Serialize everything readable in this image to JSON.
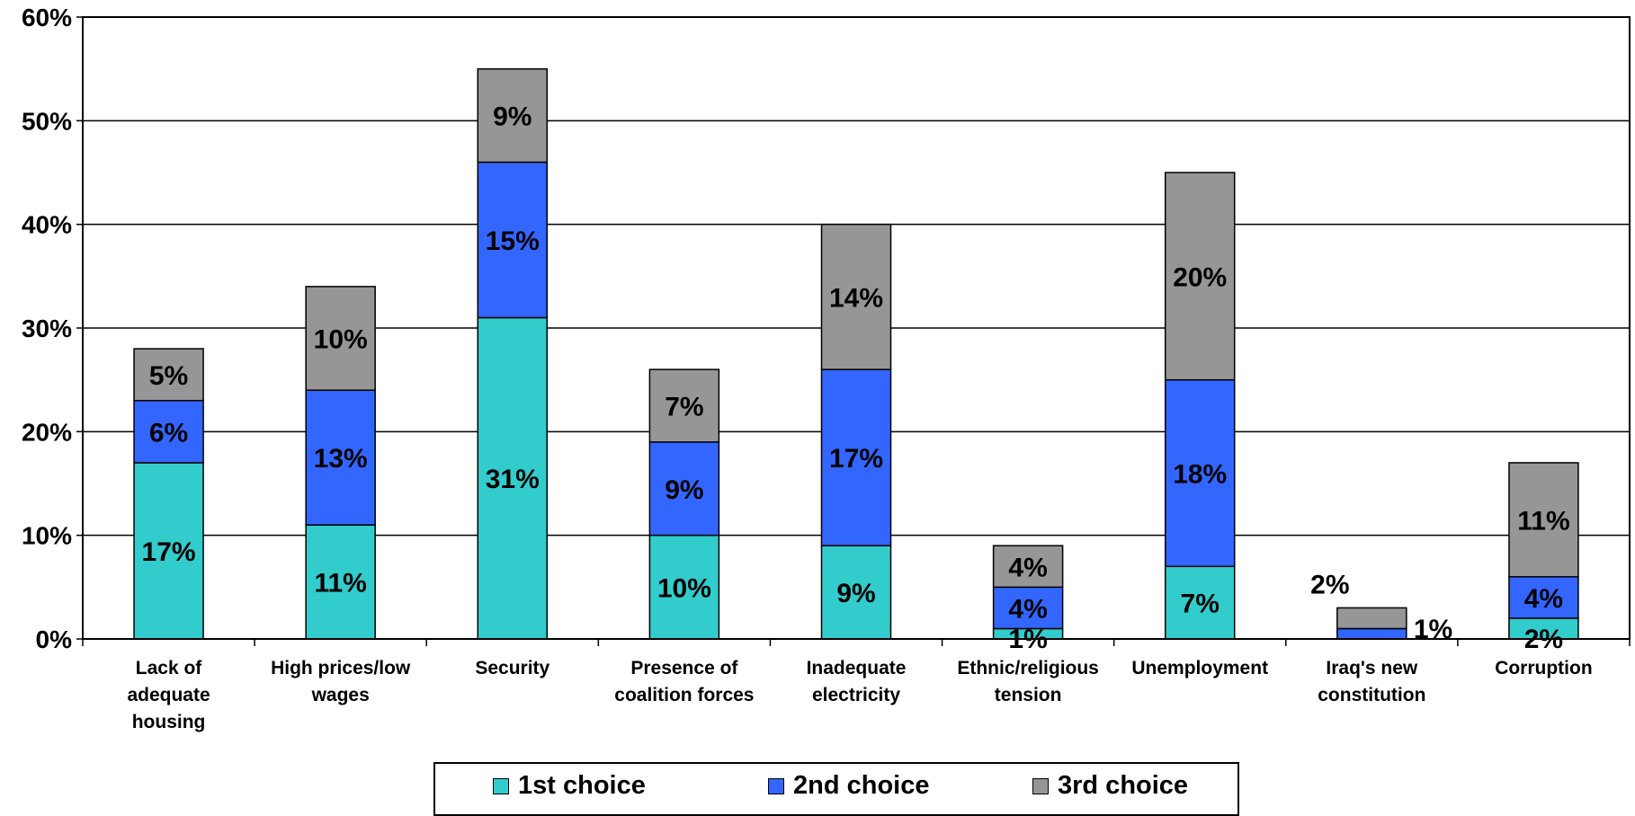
{
  "chart_data": {
    "type": "bar",
    "stacked": true,
    "categories": [
      [
        "Lack of",
        "adequate",
        "housing"
      ],
      [
        "High prices/low",
        "wages"
      ],
      [
        "Security"
      ],
      [
        "Presence of",
        "coalition forces"
      ],
      [
        "Inadequate",
        "electricity"
      ],
      [
        "Ethnic/religious",
        "tension"
      ],
      [
        "Unemployment"
      ],
      [
        "Iraq's new",
        "constitution"
      ],
      [
        "Corruption"
      ]
    ],
    "series": [
      {
        "name": "1st choice",
        "color": "#33CCCC",
        "values": [
          17,
          11,
          31,
          10,
          9,
          1,
          7,
          0,
          2
        ]
      },
      {
        "name": "2nd choice",
        "color": "#3366FF",
        "values": [
          6,
          13,
          15,
          9,
          17,
          4,
          18,
          1,
          4
        ]
      },
      {
        "name": "3rd choice",
        "color": "#969696",
        "values": [
          5,
          10,
          9,
          7,
          14,
          4,
          20,
          2,
          11
        ]
      }
    ],
    "ylim": [
      0,
      60
    ],
    "yticks": [
      "0%",
      "10%",
      "20%",
      "30%",
      "40%",
      "50%",
      "60%"
    ],
    "ytick_values": [
      0,
      10,
      20,
      30,
      40,
      50,
      60
    ],
    "value_suffix": "%",
    "grid": true,
    "legend_position": "bottom",
    "title": "",
    "xlabel": "",
    "ylabel": ""
  }
}
